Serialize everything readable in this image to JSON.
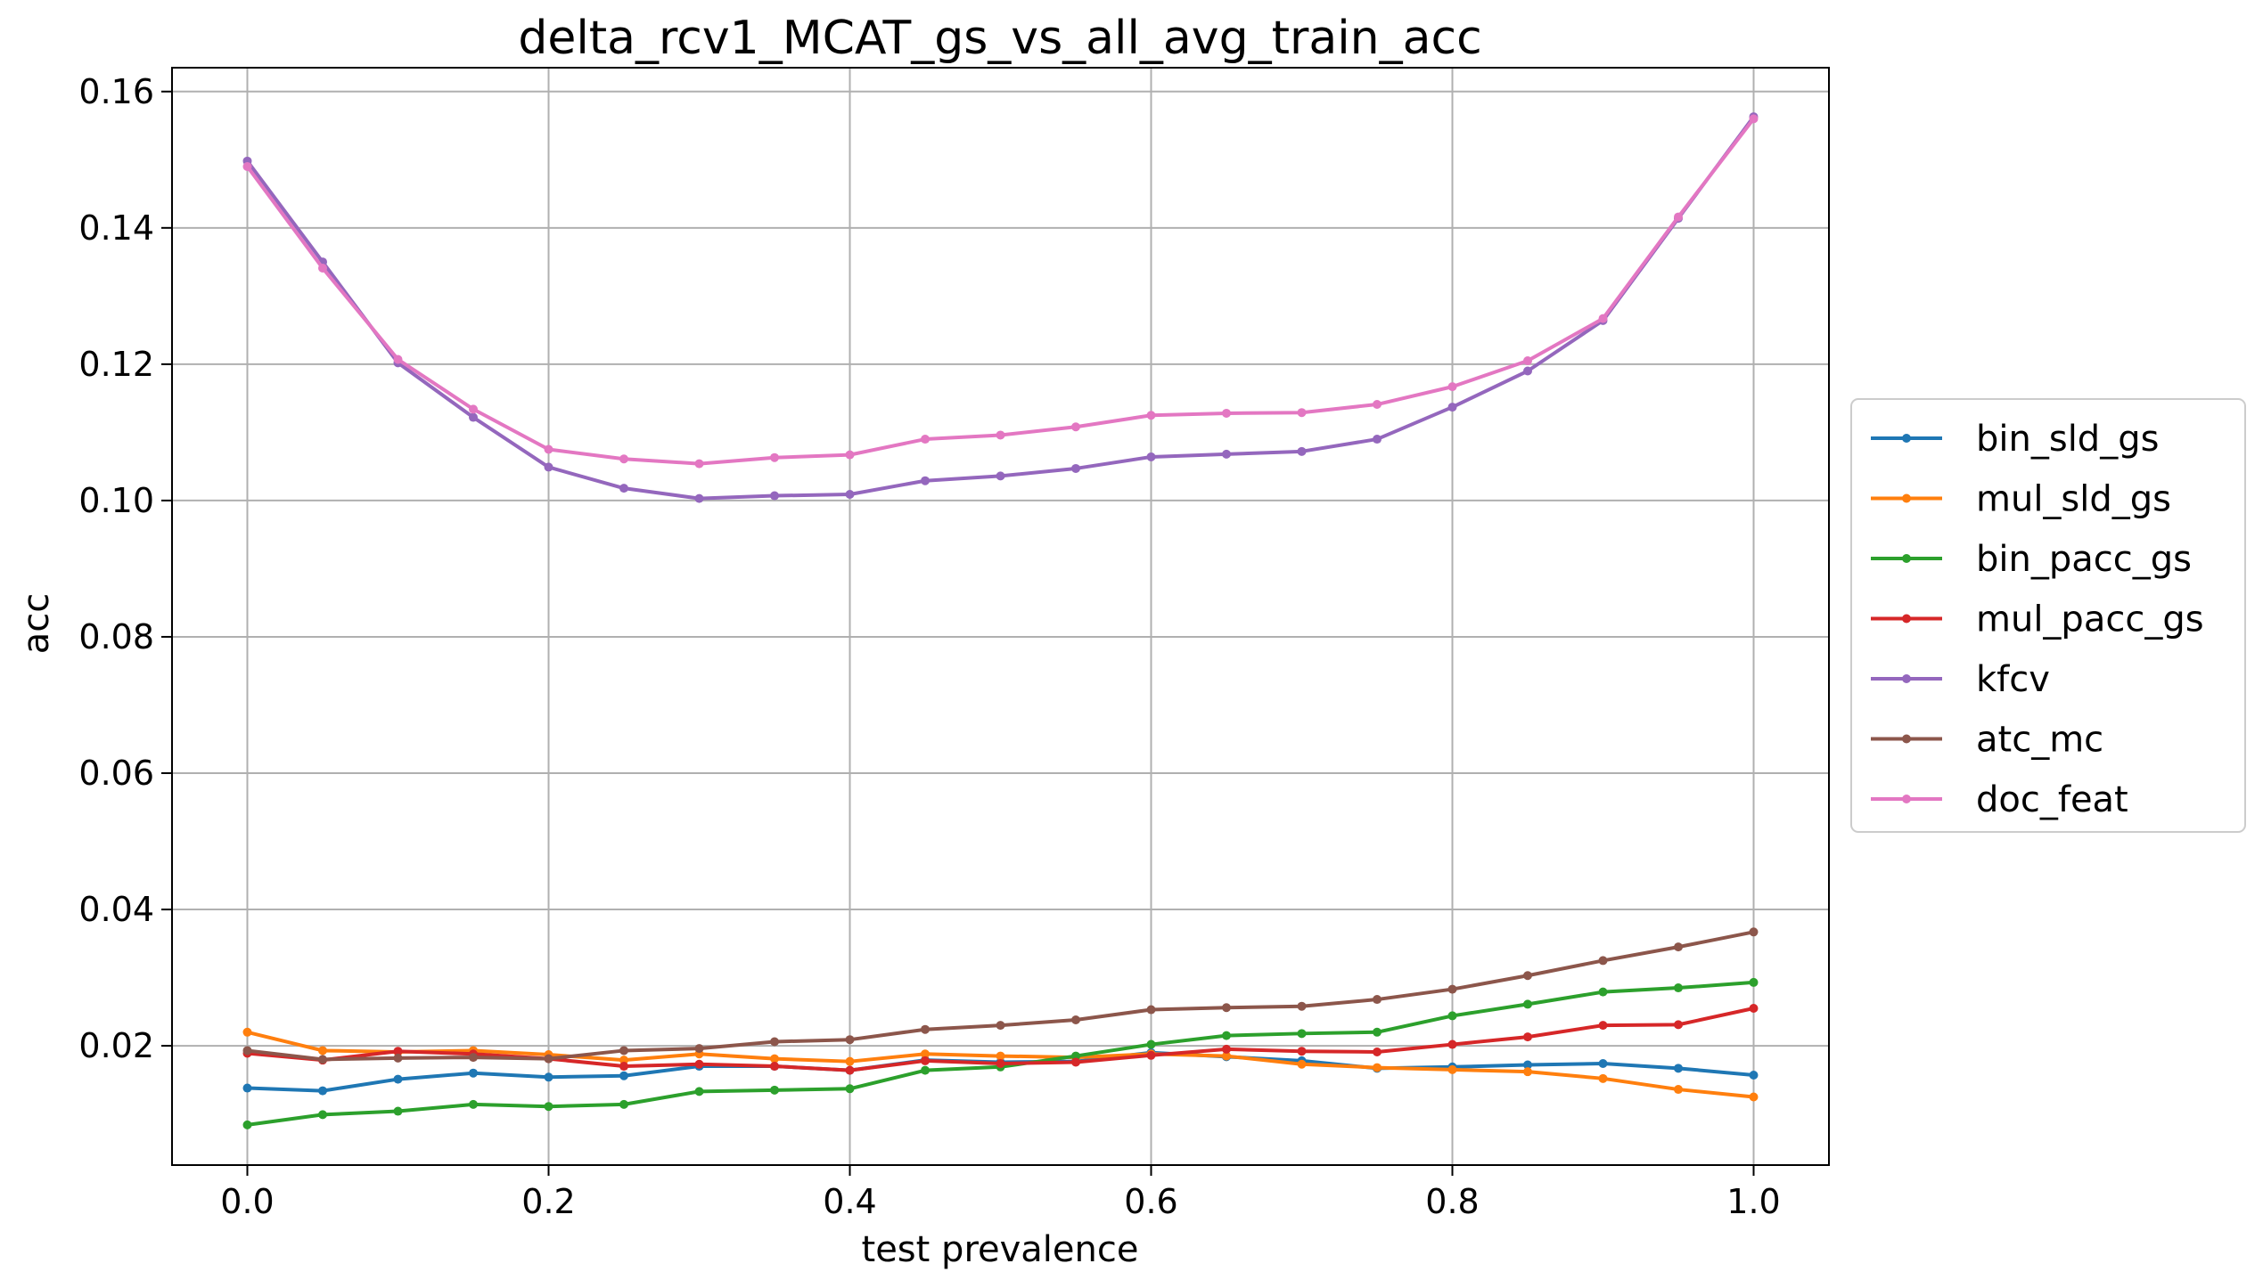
{
  "chart_data": {
    "type": "line",
    "title": "delta_rcv1_MCAT_gs_vs_all_avg_train_acc",
    "xlabel": "test prevalence",
    "ylabel": "acc",
    "xlim": [
      -0.05,
      1.05
    ],
    "ylim": [
      0.0025,
      0.1635
    ],
    "xticks": [
      0.0,
      0.2,
      0.4,
      0.6,
      0.8,
      1.0
    ],
    "xtick_labels": [
      "0.0",
      "0.2",
      "0.4",
      "0.6",
      "0.8",
      "1.0"
    ],
    "yticks": [
      0.02,
      0.04,
      0.06,
      0.08,
      0.1,
      0.12,
      0.14,
      0.16
    ],
    "ytick_labels": [
      "0.02",
      "0.04",
      "0.06",
      "0.08",
      "0.10",
      "0.12",
      "0.14",
      "0.16"
    ],
    "grid": true,
    "legend_position": "center-right-outside",
    "x": [
      0.0,
      0.05,
      0.1,
      0.15,
      0.2,
      0.25,
      0.3,
      0.35,
      0.4,
      0.45,
      0.5,
      0.55,
      0.6,
      0.65,
      0.7,
      0.75,
      0.8,
      0.85,
      0.9,
      0.95,
      1.0
    ],
    "series": [
      {
        "name": "bin_sld_gs",
        "color": "#1f77b4",
        "values": [
          0.0138,
          0.0134,
          0.0151,
          0.016,
          0.0154,
          0.0156,
          0.017,
          0.017,
          0.0164,
          0.0179,
          0.0176,
          0.0177,
          0.019,
          0.0184,
          0.0178,
          0.0167,
          0.0169,
          0.0172,
          0.0174,
          0.0167,
          0.0157
        ]
      },
      {
        "name": "mul_sld_gs",
        "color": "#ff7f0e",
        "values": [
          0.022,
          0.0193,
          0.0191,
          0.0193,
          0.0187,
          0.0179,
          0.0188,
          0.0181,
          0.0177,
          0.0188,
          0.0185,
          0.0183,
          0.0188,
          0.0185,
          0.0173,
          0.0168,
          0.0165,
          0.0162,
          0.0152,
          0.0136,
          0.0125
        ]
      },
      {
        "name": "bin_pacc_gs",
        "color": "#2ca02c",
        "values": [
          0.0084,
          0.0099,
          0.0104,
          0.0114,
          0.0111,
          0.0114,
          0.0133,
          0.0135,
          0.0137,
          0.0164,
          0.0169,
          0.0185,
          0.0202,
          0.0215,
          0.0218,
          0.022,
          0.0244,
          0.0261,
          0.0279,
          0.0285,
          0.0293
        ]
      },
      {
        "name": "mul_pacc_gs",
        "color": "#d62728",
        "values": [
          0.0189,
          0.0179,
          0.0192,
          0.0188,
          0.0181,
          0.017,
          0.0173,
          0.017,
          0.0164,
          0.0178,
          0.0174,
          0.0176,
          0.0186,
          0.0195,
          0.0192,
          0.0191,
          0.0202,
          0.0213,
          0.023,
          0.0231,
          0.0255
        ]
      },
      {
        "name": "kfcv",
        "color": "#9467bd",
        "values": [
          0.1498,
          0.135,
          0.1202,
          0.1122,
          0.1049,
          0.1018,
          0.1003,
          0.1007,
          0.1009,
          0.1029,
          0.1036,
          0.1047,
          0.1064,
          0.1068,
          0.1072,
          0.109,
          0.1137,
          0.119,
          0.1264,
          0.1414,
          0.1563
        ]
      },
      {
        "name": "atc_mc",
        "color": "#8c564b",
        "values": [
          0.0193,
          0.018,
          0.0182,
          0.0183,
          0.0181,
          0.0193,
          0.0196,
          0.0206,
          0.0209,
          0.0224,
          0.023,
          0.0238,
          0.0253,
          0.0256,
          0.0258,
          0.0268,
          0.0283,
          0.0303,
          0.0325,
          0.0345,
          0.0367
        ]
      },
      {
        "name": "doc_feat",
        "color": "#e377c2",
        "values": [
          0.149,
          0.1341,
          0.1207,
          0.1134,
          0.1075,
          0.1061,
          0.1054,
          0.1063,
          0.1067,
          0.109,
          0.1096,
          0.1108,
          0.1125,
          0.1128,
          0.1129,
          0.1141,
          0.1167,
          0.1205,
          0.1267,
          0.1416,
          0.156
        ]
      }
    ]
  }
}
